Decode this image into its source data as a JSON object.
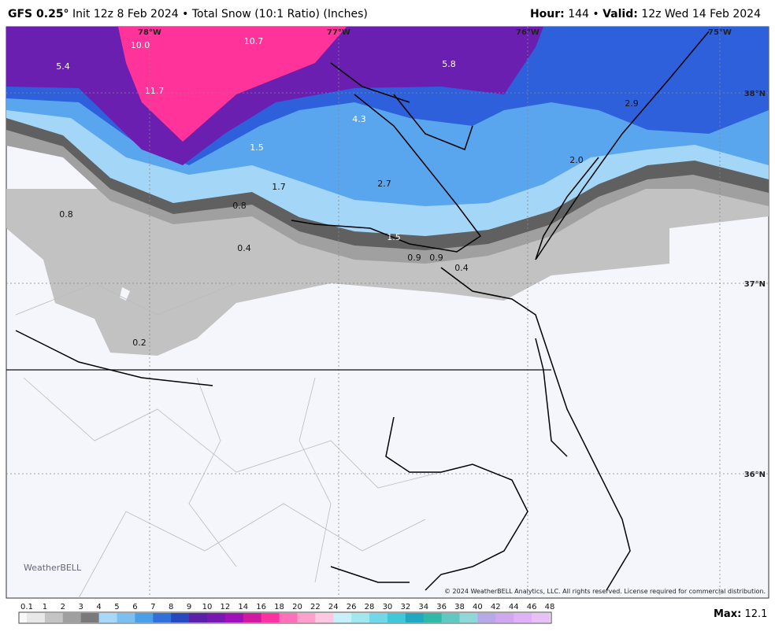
{
  "header": {
    "model": "GFS 0.25°",
    "title": "Init 12z 8 Feb 2024 • Total Snow (10:1 Ratio) (Inches)",
    "hour_label": "Hour:",
    "hour": "144 •",
    "valid_label": "Valid:",
    "valid": "12z Wed 14 Feb 2024"
  },
  "map": {
    "labels": [
      {
        "text": "10.0"
      },
      {
        "text": "10.7"
      },
      {
        "text": "5.4"
      },
      {
        "text": "11.7"
      },
      {
        "text": "5.8"
      },
      {
        "text": "4.3"
      },
      {
        "text": "2.9"
      },
      {
        "text": "1.5"
      },
      {
        "text": "2.0"
      },
      {
        "text": "1.7"
      },
      {
        "text": "2.7"
      },
      {
        "text": "0.8"
      },
      {
        "text": "0.8"
      },
      {
        "text": "1.5"
      },
      {
        "text": "0.4"
      },
      {
        "text": "0.9"
      },
      {
        "text": "0.9"
      },
      {
        "text": "0.4"
      },
      {
        "text": "0.2"
      }
    ],
    "latitudes": [
      "38°N",
      "37°N",
      "36°N"
    ],
    "longitudes": [
      "78°W",
      "77°W",
      "76°W",
      "75°W"
    ],
    "copyright": "© 2024 WeatherBELL Analytics, LLC. All rights reserved. License required for commercial distribution.",
    "watermark": "WeatherBELL"
  },
  "legend": {
    "ticks": [
      "0.1",
      "1",
      "2",
      "3",
      "4",
      "5",
      "6",
      "7",
      "8",
      "9",
      "10",
      "12",
      "14",
      "16",
      "18",
      "20",
      "22",
      "24",
      "26",
      "28",
      "30",
      "32",
      "34",
      "36",
      "38",
      "40",
      "42",
      "44",
      "46",
      "48"
    ],
    "colors": [
      "#e8e8e8",
      "#c4c4c4",
      "#a0a0a0",
      "#7a7a7a",
      "#a8d8f8",
      "#7cc0f0",
      "#4aa0e8",
      "#3070d8",
      "#2848c0",
      "#5a20a8",
      "#7818b0",
      "#a010b8",
      "#d018a0",
      "#ff30a0",
      "#ff70b8",
      "#ffa0cc",
      "#ffc8e0",
      "#c8f0f8",
      "#a0e8f0",
      "#70d8e8",
      "#40c8d8",
      "#20a8c0",
      "#30b8a8",
      "#60c8c0",
      "#90d8d8",
      "#b8a8e8",
      "#d0a8f0",
      "#e0b0f8",
      "#e8c0f8"
    ],
    "max_label": "Max:",
    "max": "12.1"
  }
}
